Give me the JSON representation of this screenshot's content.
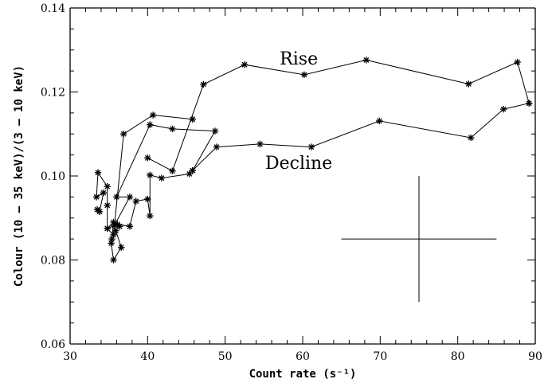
{
  "chart_data": {
    "type": "scatter",
    "xlabel": "Count rate (s⁻¹)",
    "ylabel": "Colour (10 – 35 keV)/(3 – 10 keV)",
    "xlim": [
      30,
      90
    ],
    "ylim": [
      0.06,
      0.14
    ],
    "xticks": [
      "30",
      "40",
      "50",
      "60",
      "70",
      "80",
      "90"
    ],
    "yticks": [
      "0.06",
      "0.08",
      "0.10",
      "0.12",
      "0.14"
    ],
    "grid": false,
    "annotations": [
      {
        "text": "Rise",
        "x": 59.5,
        "y": 0.1265
      },
      {
        "text": "Decline",
        "x": 59.5,
        "y": 0.1017
      }
    ],
    "error_bar": {
      "x": 75,
      "y": 0.085,
      "x_err": 10,
      "y_err": 0.015
    },
    "series": [
      {
        "marker": "asterisk",
        "points": [
          [
            33.5,
            0.092
          ],
          [
            33.8,
            0.0915
          ],
          [
            34.3,
            0.096
          ],
          [
            33.4,
            0.095
          ],
          [
            33.6,
            0.1008
          ],
          [
            34.8,
            0.0975
          ],
          [
            34.8,
            0.093
          ],
          [
            34.8,
            0.0875
          ],
          [
            35.6,
            0.089
          ],
          [
            35.4,
            0.085
          ],
          [
            35.3,
            0.084
          ],
          [
            35.6,
            0.08
          ],
          [
            36.6,
            0.083
          ],
          [
            35.9,
            0.087
          ],
          [
            36.4,
            0.088
          ],
          [
            36.1,
            0.0885
          ],
          [
            37.7,
            0.088
          ],
          [
            38.5,
            0.094
          ],
          [
            40.0,
            0.0945
          ],
          [
            40.3,
            0.0905
          ],
          [
            40.3,
            0.1002
          ],
          [
            41.8,
            0.0995
          ],
          [
            45.4,
            0.1005
          ],
          [
            45.8,
            0.1013
          ],
          [
            48.7,
            0.1107
          ],
          [
            43.2,
            0.1112
          ],
          [
            40.3,
            0.1122
          ],
          [
            36.0,
            0.095
          ],
          [
            37.7,
            0.095
          ],
          [
            35.7,
            0.0882
          ],
          [
            34.8,
            0.0875
          ],
          [
            35.6,
            0.086
          ],
          [
            36.9,
            0.11
          ],
          [
            40.7,
            0.1145
          ],
          [
            45.8,
            0.1135
          ]
        ]
      },
      {
        "name": "Rise",
        "marker": "asterisk",
        "points": [
          [
            40.0,
            0.1043
          ],
          [
            43.2,
            0.1012
          ],
          [
            47.2,
            0.1218
          ],
          [
            52.5,
            0.1265
          ],
          [
            60.2,
            0.1241
          ],
          [
            68.2,
            0.1276
          ],
          [
            81.4,
            0.1219
          ],
          [
            87.7,
            0.1271
          ],
          [
            89.2,
            0.1173
          ]
        ]
      },
      {
        "name": "Decline",
        "marker": "asterisk",
        "points": [
          [
            45.8,
            0.1013
          ],
          [
            48.9,
            0.1069
          ],
          [
            54.5,
            0.1076
          ],
          [
            61.1,
            0.1069
          ],
          [
            69.9,
            0.1131
          ],
          [
            81.7,
            0.1091
          ],
          [
            85.9,
            0.1159
          ],
          [
            89.2,
            0.1173
          ]
        ]
      }
    ]
  }
}
